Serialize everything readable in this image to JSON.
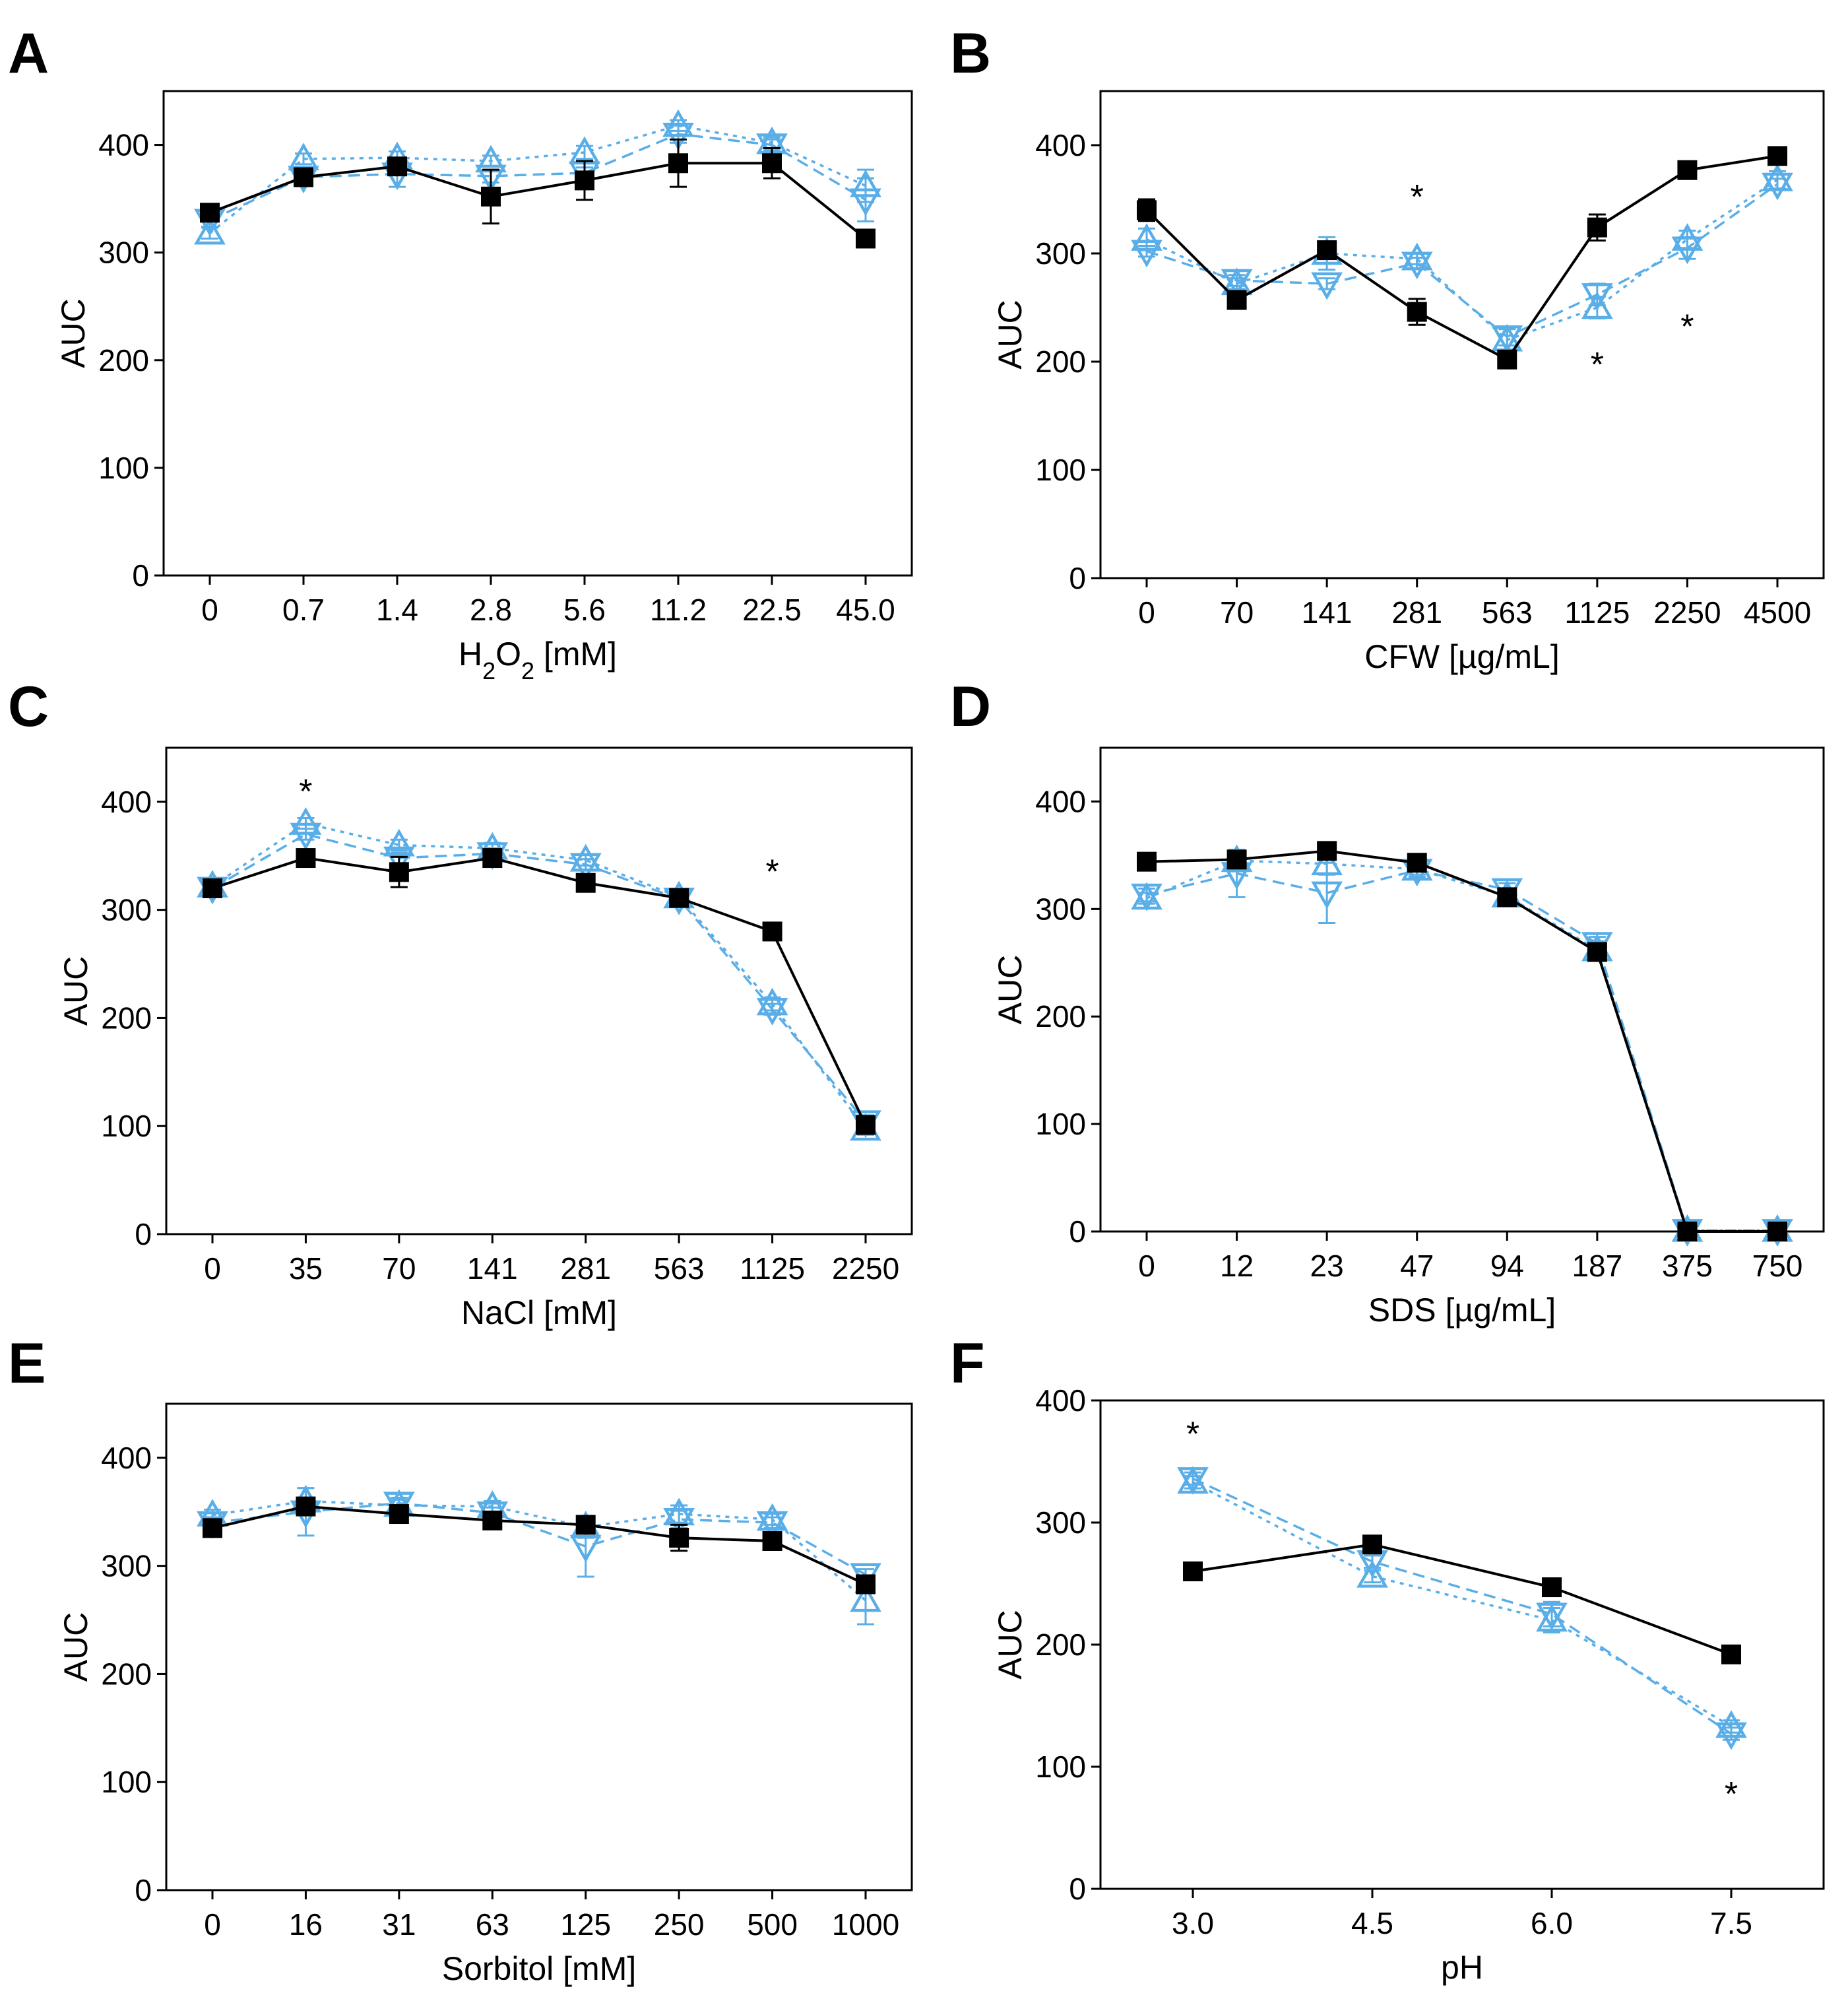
{
  "colors": {
    "black": "#000000",
    "blue": "#5aaee8",
    "background": "#ffffff"
  },
  "series_styles": [
    {
      "name": "series_black_squares",
      "color": "#000000",
      "marker": "square",
      "line": "solid"
    },
    {
      "name": "series_blue_triangle_up",
      "color": "#5aaee8",
      "marker": "triangle-up",
      "line": "dotted"
    },
    {
      "name": "series_blue_triangle_down",
      "color": "#5aaee8",
      "marker": "triangle-down",
      "line": "dashed"
    }
  ],
  "chart_data": [
    {
      "panel": "A",
      "type": "line",
      "ylabel": "AUC",
      "xlabel": {
        "pre": "H",
        "sub1": "2",
        "mid": "O",
        "sub2": "2",
        "post": " [mM]"
      },
      "categories": [
        "0",
        "0.7",
        "1.4",
        "2.8",
        "5.6",
        "11.2",
        "22.5",
        "45.0"
      ],
      "ylim": [
        0,
        450
      ],
      "yticks": [
        0,
        100,
        200,
        300,
        400
      ],
      "yticklabels": [
        "0",
        "100",
        "200",
        "300",
        "400"
      ],
      "series": [
        {
          "values": [
            337,
            370,
            380,
            352,
            367,
            383,
            383,
            313
          ],
          "errors": [
            5,
            6,
            6,
            25,
            18,
            22,
            14,
            5
          ]
        },
        {
          "values": [
            318,
            387,
            388,
            385,
            393,
            418,
            402,
            362
          ],
          "errors": [
            5,
            5,
            6,
            5,
            6,
            5,
            5,
            15
          ]
        },
        {
          "values": [
            330,
            370,
            373,
            371,
            374,
            410,
            400,
            349
          ],
          "errors": [
            6,
            5,
            12,
            6,
            5,
            8,
            5,
            20
          ]
        }
      ],
      "annotations": []
    },
    {
      "panel": "B",
      "type": "line",
      "ylabel": "AUC",
      "xlabel": "CFW [µg/mL]",
      "categories": [
        "0",
        "70",
        "141",
        "281",
        "563",
        "1125",
        "2250",
        "4500"
      ],
      "ylim": [
        0,
        450
      ],
      "yticks": [
        0,
        100,
        200,
        300,
        400
      ],
      "yticklabels": [
        "0",
        "100",
        "200",
        "300",
        "400"
      ],
      "series": [
        {
          "values": [
            340,
            257,
            303,
            246,
            202,
            324,
            377,
            390
          ],
          "errors": [
            10,
            5,
            5,
            12,
            8,
            12,
            5,
            5
          ]
        },
        {
          "values": [
            313,
            272,
            300,
            295,
            220,
            250,
            313,
            368
          ],
          "errors": [
            10,
            5,
            15,
            5,
            10,
            10,
            8,
            8
          ]
        },
        {
          "values": [
            302,
            275,
            272,
            291,
            223,
            262,
            305,
            364
          ],
          "errors": [
            5,
            5,
            5,
            5,
            8,
            10,
            10,
            5
          ]
        }
      ],
      "annotations": [
        {
          "text": "*",
          "category": "281",
          "value": 355
        },
        {
          "text": "*",
          "category": "1125",
          "value": 200
        },
        {
          "text": "*",
          "category": "2250",
          "value": 235
        }
      ]
    },
    {
      "panel": "C",
      "type": "line",
      "ylabel": "AUC",
      "xlabel": "NaCl [mM]",
      "categories": [
        "0",
        "35",
        "70",
        "141",
        "281",
        "563",
        "1125",
        "2250"
      ],
      "ylim": [
        0,
        450
      ],
      "yticks": [
        0,
        100,
        200,
        300,
        400
      ],
      "yticklabels": [
        "0",
        "100",
        "200",
        "300",
        "400"
      ],
      "series": [
        {
          "values": [
            320,
            348,
            335,
            348,
            325,
            311,
            280,
            101
          ],
          "errors": [
            5,
            5,
            14,
            5,
            5,
            4,
            5,
            5
          ]
        },
        {
          "values": [
            322,
            380,
            360,
            357,
            346,
            312,
            213,
            97
          ],
          "errors": [
            4,
            5,
            5,
            5,
            5,
            5,
            6,
            5
          ]
        },
        {
          "values": [
            320,
            370,
            348,
            352,
            342,
            310,
            208,
            104
          ],
          "errors": [
            5,
            5,
            5,
            5,
            5,
            4,
            5,
            6
          ]
        }
      ],
      "annotations": [
        {
          "text": "*",
          "category": "35",
          "value": 412
        },
        {
          "text": "*",
          "category": "1125",
          "value": 338
        }
      ]
    },
    {
      "panel": "D",
      "type": "line",
      "ylabel": "AUC",
      "xlabel": "SDS [µg/mL]",
      "categories": [
        "0",
        "12",
        "23",
        "47",
        "94",
        "187",
        "375",
        "750"
      ],
      "ylim": [
        0,
        450
      ],
      "yticks": [
        0,
        100,
        200,
        300,
        400
      ],
      "yticklabels": [
        "0",
        "100",
        "200",
        "300",
        "400"
      ],
      "series": [
        {
          "values": [
            344,
            346,
            354,
            343,
            311,
            260,
            0,
            0
          ],
          "errors": [
            5,
            5,
            5,
            5,
            8,
            5,
            1,
            1
          ]
        },
        {
          "values": [
            310,
            345,
            342,
            337,
            312,
            262,
            1,
            1
          ],
          "errors": [
            5,
            10,
            10,
            5,
            5,
            8,
            1,
            1
          ]
        },
        {
          "values": [
            313,
            333,
            315,
            336,
            318,
            268,
            1,
            1
          ],
          "errors": [
            6,
            22,
            28,
            6,
            6,
            6,
            1,
            1
          ]
        }
      ],
      "annotations": []
    },
    {
      "panel": "E",
      "type": "line",
      "ylabel": "AUC",
      "xlabel": "Sorbitol [mM]",
      "categories": [
        "0",
        "16",
        "31",
        "63",
        "125",
        "250",
        "500",
        "1000"
      ],
      "ylim": [
        0,
        450
      ],
      "yticks": [
        0,
        100,
        200,
        300,
        400
      ],
      "yticklabels": [
        "0",
        "100",
        "200",
        "300",
        "400"
      ],
      "series": [
        {
          "values": [
            335,
            355,
            348,
            342,
            338,
            326,
            323,
            283
          ],
          "errors": [
            5,
            5,
            5,
            5,
            6,
            12,
            4,
            6
          ]
        },
        {
          "values": [
            347,
            360,
            356,
            355,
            336,
            348,
            343,
            268
          ],
          "errors": [
            5,
            12,
            5,
            5,
            10,
            8,
            5,
            22
          ]
        },
        {
          "values": [
            340,
            350,
            358,
            349,
            318,
            343,
            340,
            292
          ],
          "errors": [
            5,
            22,
            5,
            5,
            28,
            8,
            5,
            5
          ]
        }
      ],
      "annotations": []
    },
    {
      "panel": "F",
      "type": "line",
      "ylabel": "AUC",
      "xlabel": "pH",
      "categories": [
        "3.0",
        "4.5",
        "6.0",
        "7.5"
      ],
      "ylim": [
        0,
        400
      ],
      "yticks": [
        0,
        100,
        200,
        300,
        400
      ],
      "yticklabels": [
        "0",
        "100",
        "200",
        "300",
        "400"
      ],
      "series": [
        {
          "values": [
            260,
            282,
            247,
            192
          ],
          "errors": [
            4,
            4,
            5,
            4
          ]
        },
        {
          "values": [
            333,
            256,
            220,
            133
          ],
          "errors": [
            5,
            5,
            10,
            5
          ]
        },
        {
          "values": [
            336,
            268,
            225,
            127
          ],
          "errors": [
            5,
            5,
            10,
            5
          ]
        }
      ],
      "annotations": [
        {
          "text": "*",
          "category": "3.0",
          "value": 375
        },
        {
          "text": "*",
          "category": "7.5",
          "value": 80
        }
      ]
    }
  ]
}
